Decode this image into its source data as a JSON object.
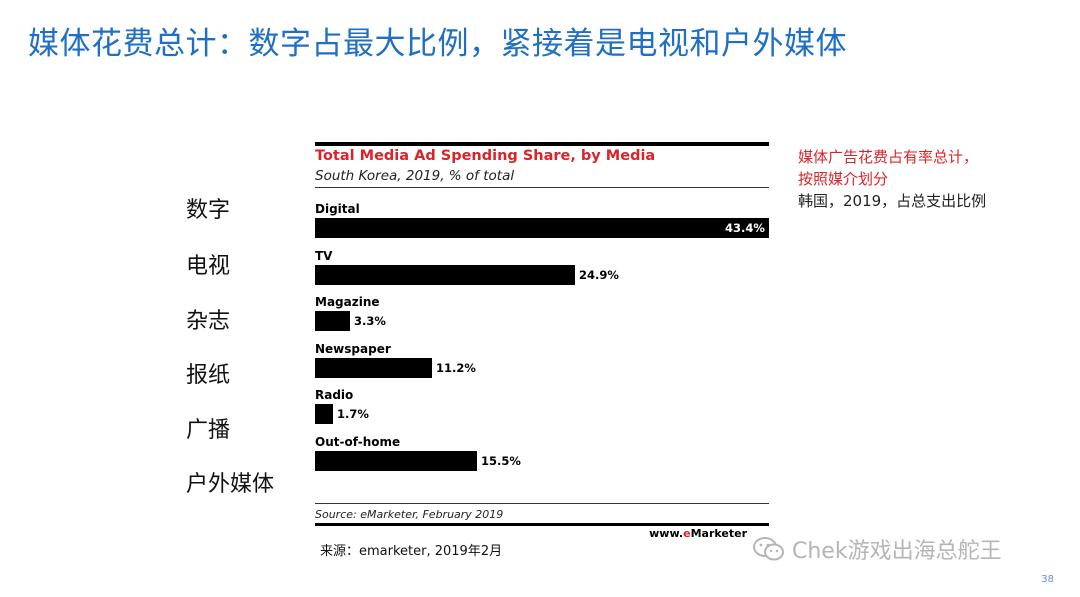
{
  "slide": {
    "title": "媒体花费总计：数字占最大比例，紧接着是电视和户外媒体",
    "cn_labels": [
      "数字",
      "电视",
      "杂志",
      "报纸",
      "广播",
      "户外媒体"
    ],
    "note_line1": "媒体广告花费占有率总计，",
    "note_line2": "按照媒介划分",
    "note_line3": "韩国，2019，占总支出比例",
    "caption": "来源：emarketer, 2019年2月",
    "watermark": "Chek游戏出海总舵王",
    "page_number": "38"
  },
  "chart_data": {
    "type": "bar",
    "orientation": "horizontal",
    "title": "Total Media Ad Spending Share, by Media",
    "subtitle": "South Korea, 2019, % of total",
    "categories": [
      "Digital",
      "TV",
      "Magazine",
      "Newspaper",
      "Radio",
      "Out-of-home"
    ],
    "values": [
      43.4,
      24.9,
      3.3,
      11.2,
      1.7,
      15.5
    ],
    "value_labels": [
      "43.4%",
      "24.9%",
      "3.3%",
      "11.2%",
      "1.7%",
      "15.5%"
    ],
    "xlim": [
      0,
      43.4
    ],
    "grid": false,
    "source": "Source: eMarketer, February 2019",
    "brand_prefix": "www.",
    "brand_accent": "e",
    "brand_suffix": "Marketer",
    "bar_color": "#000000",
    "title_color": "#d9242a"
  },
  "colors": {
    "slide_title": "#1f6fc5",
    "note_red": "#d9242a"
  }
}
